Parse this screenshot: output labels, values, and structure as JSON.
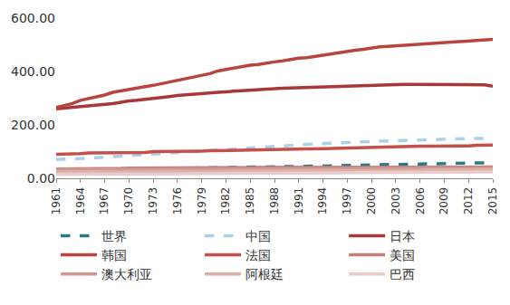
{
  "chart_data": {
    "type": "line",
    "x": [
      1961,
      1962,
      1963,
      1964,
      1965,
      1966,
      1967,
      1968,
      1969,
      1970,
      1971,
      1972,
      1973,
      1974,
      1975,
      1976,
      1977,
      1978,
      1979,
      1980,
      1981,
      1982,
      1983,
      1984,
      1985,
      1986,
      1987,
      1988,
      1989,
      1990,
      1991,
      1992,
      1993,
      1994,
      1995,
      1996,
      1997,
      1998,
      1999,
      2000,
      2001,
      2002,
      2003,
      2004,
      2005,
      2006,
      2007,
      2008,
      2009,
      2010,
      2011,
      2012,
      2013,
      2014,
      2015
    ],
    "xlim": [
      1961,
      2015
    ],
    "xticks": [
      1961,
      1964,
      1967,
      1970,
      1973,
      1976,
      1979,
      1982,
      1985,
      1988,
      1991,
      1994,
      1997,
      2000,
      2003,
      2006,
      2009,
      2012,
      2015
    ],
    "ylim": [
      0,
      600
    ],
    "yticks": [
      {
        "value": 0,
        "label": "0.00"
      },
      {
        "value": 200,
        "label": "200.00"
      },
      {
        "value": 400,
        "label": "400.00"
      },
      {
        "value": 600,
        "label": "600.00"
      }
    ],
    "grid": false,
    "legend": "bottom",
    "series": [
      {
        "name": "世界",
        "color": "#2b7a8a",
        "line_style": "dash",
        "values": [
          30,
          30,
          31,
          31,
          32,
          32,
          33,
          33,
          34,
          34,
          35,
          35,
          36,
          36,
          37,
          37,
          38,
          38,
          39,
          39,
          40,
          40,
          41,
          41,
          42,
          42,
          43,
          43,
          44,
          44,
          45,
          45,
          46,
          46,
          47,
          47,
          48,
          48,
          49,
          50,
          51,
          51,
          52,
          52,
          53,
          53,
          54,
          55,
          55,
          56,
          57,
          57,
          58,
          58,
          58
        ]
      },
      {
        "name": "中国",
        "color": "#a9d3e5",
        "line_style": "dash",
        "values": [
          70,
          71,
          72,
          73,
          75,
          77,
          79,
          81,
          83,
          85,
          87,
          89,
          91,
          93,
          95,
          97,
          99,
          101,
          103,
          105,
          107,
          109,
          111,
          113,
          115,
          117,
          119,
          121,
          123,
          125,
          126,
          127,
          128,
          129,
          130,
          132,
          134,
          136,
          137,
          138,
          139,
          141,
          143,
          144,
          145,
          146,
          146,
          147,
          147,
          148,
          148,
          149,
          149,
          150,
          150
        ]
      },
      {
        "name": "日本",
        "color": "#a9373a",
        "line_style": "solid",
        "values": [
          260,
          263,
          266,
          268,
          270,
          272,
          275,
          280,
          285,
          290,
          292,
          295,
          298,
          302,
          306,
          310,
          313,
          316,
          318,
          320,
          322,
          324,
          326,
          328,
          331,
          334,
          335,
          336,
          337,
          338,
          340,
          341,
          342,
          343,
          344,
          345,
          346,
          347,
          348,
          350,
          351,
          352,
          352,
          352,
          352,
          352,
          352,
          352,
          352,
          352,
          352,
          352,
          352,
          350,
          345
        ]
      },
      {
        "name": "韩国",
        "color": "#b8443f",
        "line_style": "solid",
        "values": [
          265,
          272,
          280,
          292,
          298,
          304,
          312,
          322,
          328,
          333,
          338,
          343,
          348,
          354,
          360,
          366,
          372,
          378,
          385,
          392,
          402,
          408,
          414,
          420,
          424,
          426,
          432,
          436,
          440,
          446,
          450,
          452,
          457,
          463,
          468,
          473,
          476,
          480,
          483,
          488,
          492,
          494,
          496,
          498,
          500,
          502,
          503,
          505,
          506,
          508,
          511,
          514,
          515,
          517,
          520
        ]
      },
      {
        "name": "法国",
        "color": "#c4504b",
        "line_style": "solid",
        "values": [
          90,
          90,
          91,
          92,
          95,
          95,
          95,
          95,
          96,
          96,
          96,
          97,
          100,
          100,
          100,
          101,
          101,
          102,
          102,
          103,
          103,
          104,
          105,
          105,
          106,
          107,
          107,
          108,
          108,
          109,
          110,
          110,
          110,
          111,
          111,
          112,
          112,
          113,
          114,
          115,
          115,
          116,
          117,
          119,
          120,
          120,
          120,
          120,
          120,
          120,
          121,
          121,
          124,
          125,
          125
        ]
      },
      {
        "name": "美国",
        "color": "#c47c76",
        "line_style": "solid",
        "values": [
          35,
          35,
          35,
          36,
          36,
          36,
          37,
          37,
          37,
          38,
          38,
          38,
          38,
          39,
          39,
          39,
          39,
          40,
          40,
          40,
          40,
          40,
          40,
          40,
          40,
          41,
          41,
          41,
          41,
          41,
          41,
          41,
          41,
          41,
          41,
          41,
          41,
          42,
          42,
          42,
          42,
          42,
          42,
          42,
          42,
          42,
          42,
          42,
          42,
          42,
          42,
          42,
          42,
          42,
          42
        ]
      },
      {
        "name": "澳大利亚",
        "color": "#d1978f",
        "line_style": "solid",
        "values": [
          33,
          33,
          33,
          33,
          34,
          34,
          34,
          34,
          34,
          34,
          35,
          35,
          35,
          35,
          35,
          35,
          35,
          35,
          35,
          35,
          35,
          35,
          35,
          35,
          35,
          35,
          36,
          36,
          36,
          36,
          36,
          36,
          36,
          36,
          36,
          36,
          36,
          36,
          37,
          37,
          37,
          37,
          37,
          37,
          37,
          37,
          37,
          37,
          37,
          37,
          37,
          38,
          38,
          38,
          38
        ]
      },
      {
        "name": "阿根廷",
        "color": "#dbb0a9",
        "line_style": "solid",
        "values": [
          25,
          25,
          25,
          25,
          25,
          25,
          26,
          26,
          26,
          26,
          26,
          26,
          26,
          26,
          27,
          27,
          27,
          27,
          27,
          27,
          27,
          27,
          28,
          28,
          28,
          28,
          28,
          28,
          28,
          28,
          29,
          29,
          29,
          29,
          29,
          29,
          29,
          29,
          29,
          30,
          30,
          30,
          30,
          30,
          30,
          30,
          31,
          31,
          31,
          31,
          31,
          31,
          32,
          32,
          32
        ]
      },
      {
        "name": "巴西",
        "color": "#e8cbca",
        "line_style": "solid",
        "values": [
          15,
          15,
          15,
          15,
          15,
          16,
          16,
          16,
          16,
          16,
          16,
          16,
          17,
          17,
          17,
          17,
          17,
          18,
          18,
          18,
          18,
          18,
          18,
          18,
          19,
          19,
          19,
          19,
          19,
          19,
          20,
          20,
          20,
          20,
          20,
          20,
          21,
          21,
          21,
          21,
          21,
          22,
          22,
          22,
          22,
          22,
          22,
          23,
          23,
          23,
          23,
          23,
          24,
          24,
          24
        ]
      }
    ]
  }
}
